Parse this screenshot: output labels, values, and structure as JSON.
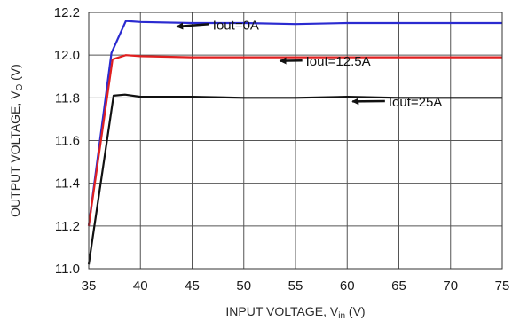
{
  "chart_data": {
    "type": "line",
    "xlabel": "INPUT VOLTAGE, V",
    "xlabel_sub": "in",
    "xlabel_suffix": " (V)",
    "ylabel": "OUTPUT VOLTAGE, V",
    "ylabel_sub": "O",
    "ylabel_suffix": " (V)",
    "xlim": [
      35,
      75
    ],
    "ylim": [
      11.0,
      12.2
    ],
    "x_ticks": [
      "35",
      "40",
      "45",
      "50",
      "55",
      "60",
      "65",
      "70",
      "75"
    ],
    "y_ticks": [
      "11.0",
      "11.2",
      "11.4",
      "11.6",
      "11.8",
      "12.0",
      "12.2"
    ],
    "grid": true,
    "series": [
      {
        "name": "Iout=0A",
        "color": "#2b2bd0",
        "x": [
          35,
          37.2,
          38.6,
          40,
          45,
          50,
          55,
          60,
          65,
          70,
          75
        ],
        "y": [
          11.2,
          12.01,
          12.16,
          12.155,
          12.15,
          12.15,
          12.145,
          12.15,
          12.15,
          12.15,
          12.15
        ]
      },
      {
        "name": "Iout=12.5A",
        "color": "#e02020",
        "x": [
          35,
          37.3,
          38.6,
          40,
          45,
          50,
          55,
          60,
          65,
          70,
          75
        ],
        "y": [
          11.2,
          11.98,
          12.0,
          11.995,
          11.99,
          11.99,
          11.99,
          11.99,
          11.99,
          11.99,
          11.99
        ]
      },
      {
        "name": "Iout=25A",
        "color": "#111111",
        "x": [
          35,
          37.4,
          38.5,
          40,
          45,
          50,
          55,
          60,
          65,
          70,
          75
        ],
        "y": [
          11.02,
          11.81,
          11.815,
          11.805,
          11.805,
          11.8,
          11.8,
          11.805,
          11.8,
          11.8,
          11.8
        ]
      }
    ],
    "annotations": [
      {
        "text": "Iout=0A",
        "series": 0,
        "arrow_to": [
          43,
          12.15
        ],
        "text_at": [
          47,
          12.12
        ]
      },
      {
        "text": "Iout=12.5A",
        "series": 1,
        "arrow_to": [
          53,
          11.99
        ],
        "text_at": [
          56,
          11.95
        ]
      },
      {
        "text": "Iout=25A",
        "series": 2,
        "arrow_to": [
          60,
          11.8
        ],
        "text_at": [
          64,
          11.76
        ]
      }
    ]
  }
}
